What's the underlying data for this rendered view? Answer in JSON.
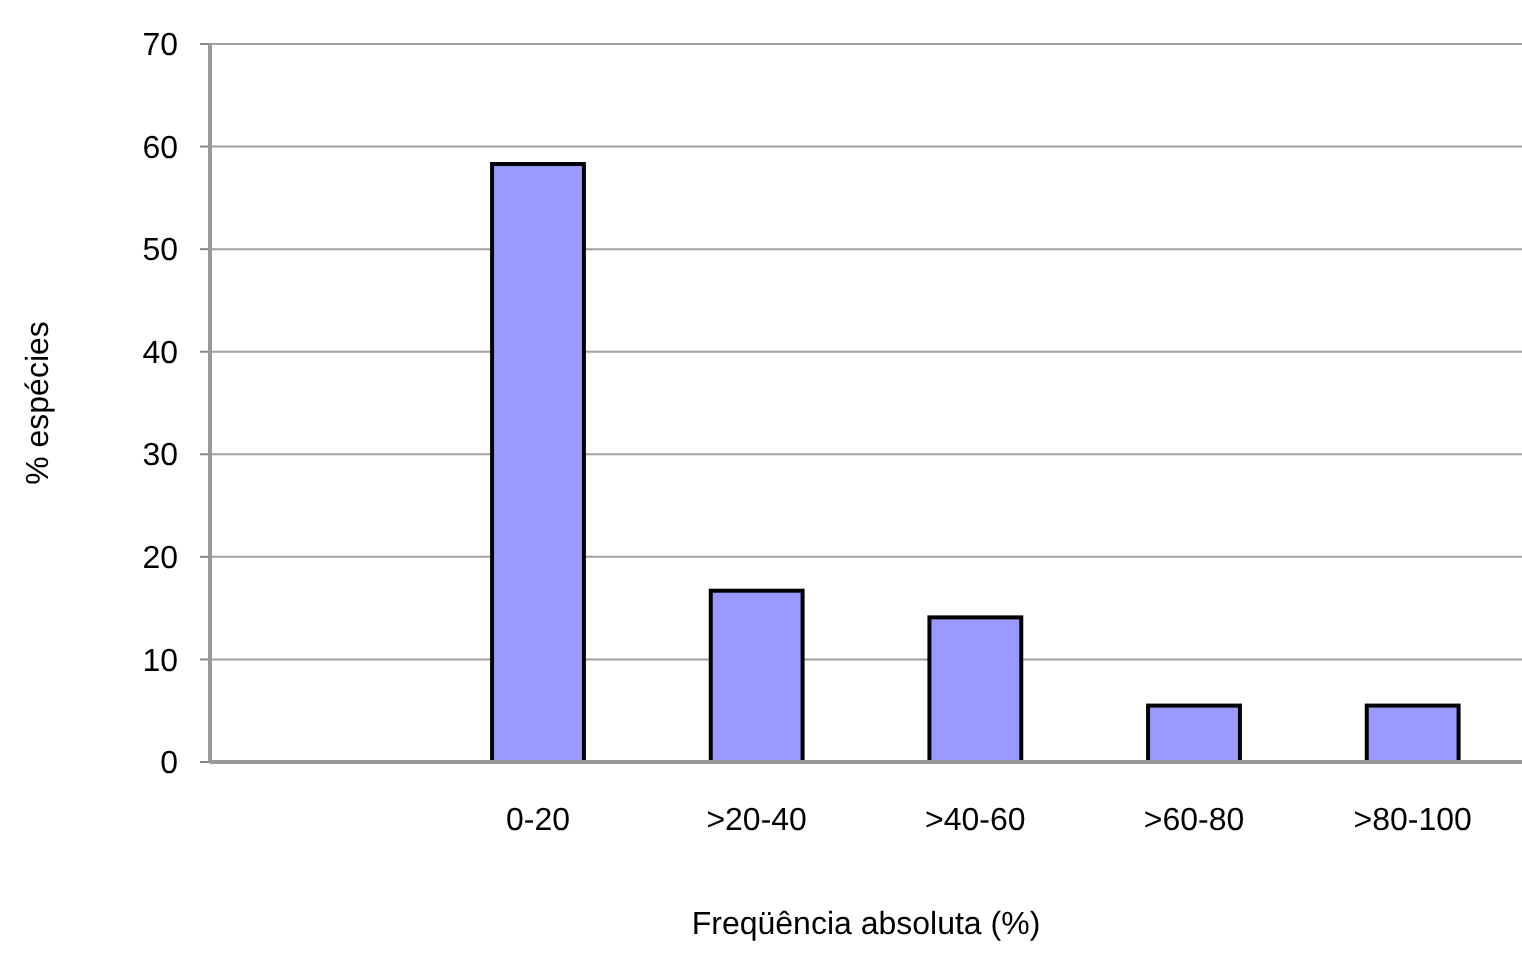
{
  "chart_data": {
    "type": "bar",
    "xlabel": "Freqüência absoluta (%)",
    "ylabel": "% espécies",
    "categories": [
      null,
      "0-20",
      ">20-40",
      ">40-60",
      ">60-80",
      ">80-100"
    ],
    "values": [
      null,
      58.3,
      16.7,
      14.1,
      5.5,
      5.5
    ],
    "color": "#9999ff",
    "ylim": [
      0,
      70
    ],
    "yticks": [
      0,
      10,
      20,
      30,
      40,
      50,
      60,
      70
    ],
    "grid": "y"
  }
}
